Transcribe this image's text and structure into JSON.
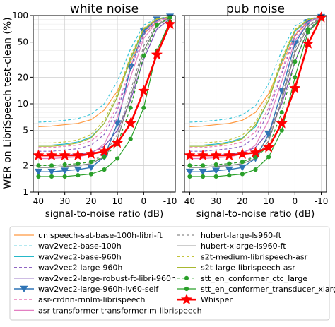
{
  "chart_data": {
    "type": "line",
    "ylabel": "WER on LibriSpeech test-clean (%)",
    "y_scale": "log",
    "ylim": [
      1,
      100
    ],
    "y_ticks": [
      1,
      2,
      5,
      10,
      20,
      50,
      100
    ],
    "y_tick_labels": [
      "1",
      "2",
      "5",
      "10",
      "20",
      "50",
      "100"
    ],
    "xlim": [
      42,
      -12
    ],
    "x_ticks": [
      40,
      30,
      20,
      10,
      0,
      -10
    ],
    "x_tick_labels": [
      "40",
      "30",
      "20",
      "10",
      "0",
      "-10"
    ],
    "grid": true,
    "legend_position": "bottom",
    "x": [
      40,
      35,
      30,
      25,
      20,
      15,
      10,
      5,
      0,
      -5,
      -10
    ],
    "series_styles": [
      {
        "name": "unispeech-sat-base-100h-libri-ft",
        "color": "#ff9940",
        "dash": "",
        "marker": "",
        "width": 1.2
      },
      {
        "name": "wav2vec2-base-100h",
        "color": "#37c5d9",
        "dash": "4,3",
        "marker": "",
        "width": 1.2
      },
      {
        "name": "wav2vec2-base-960h",
        "color": "#25b8c9",
        "dash": "",
        "marker": "",
        "width": 1.2
      },
      {
        "name": "wav2vec2-large-960h",
        "color": "#8f64c3",
        "dash": "4,3",
        "marker": "",
        "width": 1.2
      },
      {
        "name": "wav2vec2-large-robust-ft-libri-960h",
        "color": "#7b4fb6",
        "dash": "",
        "marker": "",
        "width": 1.2
      },
      {
        "name": "wav2vec2-large-960h-lv60-self",
        "color": "#2f74b5",
        "dash": "",
        "marker": "tri",
        "width": 1.4
      },
      {
        "name": "asr-crdnn-rnnlm-librispeech",
        "color": "#e87ab8",
        "dash": "4,3",
        "marker": "",
        "width": 1.2
      },
      {
        "name": "asr-transformer-transformerlm-librispeech",
        "color": "#e37fc2",
        "dash": "",
        "marker": "",
        "width": 1.2
      },
      {
        "name": "hubert-large-ls960-ft",
        "color": "#8a8a8a",
        "dash": "4,3",
        "marker": "",
        "width": 1.2
      },
      {
        "name": "hubert-xlarge-ls960-ft",
        "color": "#7a7a7a",
        "dash": "",
        "marker": "",
        "width": 1.2
      },
      {
        "name": "s2t-medium-librispeech-asr",
        "color": "#c4c43a",
        "dash": "4,3",
        "marker": "",
        "width": 1.2
      },
      {
        "name": "s2t-large-librispeech-asr",
        "color": "#a9b830",
        "dash": "",
        "marker": "",
        "width": 1.2
      },
      {
        "name": "stt_en_conformer_ctc_large",
        "color": "#2aa02a",
        "dash": "4,3",
        "marker": "dot",
        "width": 1.2
      },
      {
        "name": "stt_en_conformer_transducer_xlarge",
        "color": "#2aa02a",
        "dash": "",
        "marker": "dot",
        "width": 1.2
      },
      {
        "name": "Whisper",
        "color": "#ff0000",
        "dash": "",
        "marker": "star",
        "width": 2.6
      }
    ],
    "panels": [
      {
        "title": "white noise",
        "xlabel": "signal-to-noise ratio (dB)",
        "series": [
          {
            "name": "unispeech-sat-base-100h-libri-ft",
            "values": [
              5.5,
              5.6,
              5.8,
              6.0,
              6.6,
              8.5,
              14,
              30,
              62,
              85,
              95
            ]
          },
          {
            "name": "wav2vec2-base-100h",
            "values": [
              6.2,
              6.3,
              6.5,
              6.8,
              7.6,
              10,
              18,
              42,
              78,
              93,
              97
            ]
          },
          {
            "name": "wav2vec2-base-960h",
            "values": [
              3.4,
              3.4,
              3.5,
              3.7,
              4.2,
              6,
              12,
              32,
              68,
              90,
              97
            ]
          },
          {
            "name": "wav2vec2-large-960h",
            "values": [
              2.9,
              2.9,
              3.0,
              3.1,
              3.4,
              4.5,
              8.5,
              24,
              60,
              88,
              96
            ]
          },
          {
            "name": "wav2vec2-large-robust-ft-libri-960h",
            "values": [
              2.6,
              2.6,
              2.6,
              2.7,
              2.8,
              3.3,
              5,
              11,
              32,
              70,
              92
            ]
          },
          {
            "name": "wav2vec2-large-960h-lv60-self",
            "values": [
              1.7,
              1.7,
              1.75,
              1.8,
              1.9,
              2.5,
              6,
              26,
              66,
              90,
              97
            ]
          },
          {
            "name": "asr-crdnn-rnnlm-librispeech",
            "values": [
              3.2,
              3.2,
              3.3,
              3.4,
              3.8,
              5,
              9.5,
              26,
              64,
              90,
              97
            ]
          },
          {
            "name": "asr-transformer-transformerlm-librispeech",
            "values": [
              2.4,
              2.4,
              2.45,
              2.5,
              2.7,
              3.5,
              7,
              20,
              55,
              85,
              96
            ]
          },
          {
            "name": "hubert-large-ls960-ft",
            "values": [
              2.0,
              2.0,
              2.05,
              2.1,
              2.2,
              2.7,
              4.5,
              14,
              45,
              80,
              95
            ]
          },
          {
            "name": "hubert-xlarge-ls960-ft",
            "values": [
              1.9,
              1.9,
              1.95,
              2.0,
              2.1,
              2.5,
              4,
              12,
              40,
              77,
              94
            ]
          },
          {
            "name": "s2t-medium-librispeech-asr",
            "values": [
              3.6,
              3.6,
              3.7,
              3.9,
              4.5,
              6.5,
              13,
              35,
              72,
              92,
              97
            ]
          },
          {
            "name": "s2t-large-librispeech-asr",
            "values": [
              3.3,
              3.3,
              3.4,
              3.6,
              4.1,
              6,
              12,
              33,
              70,
              91,
              97
            ]
          },
          {
            "name": "stt_en_conformer_ctc_large",
            "values": [
              2.0,
              2.0,
              2.05,
              2.1,
              2.2,
              2.5,
              3.5,
              9,
              35,
              78,
              95
            ]
          },
          {
            "name": "stt_en_conformer_transducer_xlarge",
            "values": [
              1.5,
              1.5,
              1.5,
              1.55,
              1.6,
              1.8,
              2.4,
              4,
              9,
              40,
              85
            ]
          },
          {
            "name": "Whisper",
            "values": [
              2.6,
              2.6,
              2.6,
              2.6,
              2.7,
              2.9,
              3.6,
              6,
              14,
              36,
              80
            ]
          }
        ]
      },
      {
        "title": "pub noise",
        "xlabel": "signal-to-noise ratio (dB)",
        "series": [
          {
            "name": "unispeech-sat-base-100h-libri-ft",
            "values": [
              5.5,
              5.6,
              5.8,
              6.0,
              6.5,
              8,
              13,
              28,
              60,
              85,
              95
            ]
          },
          {
            "name": "wav2vec2-base-100h",
            "values": [
              6.2,
              6.3,
              6.5,
              6.8,
              7.5,
              9.5,
              17,
              40,
              76,
              92,
              97
            ]
          },
          {
            "name": "wav2vec2-base-960h",
            "values": [
              3.4,
              3.4,
              3.5,
              3.7,
              4.1,
              5.5,
              11,
              30,
              66,
              89,
              96
            ]
          },
          {
            "name": "wav2vec2-large-960h",
            "values": [
              2.9,
              2.9,
              3.0,
              3.1,
              3.3,
              4.2,
              8,
              22,
              58,
              87,
              96
            ]
          },
          {
            "name": "wav2vec2-large-robust-ft-libri-960h",
            "values": [
              2.6,
              2.6,
              2.6,
              2.7,
              2.8,
              3.2,
              4.8,
              10,
              30,
              68,
              92
            ]
          },
          {
            "name": "wav2vec2-large-960h-lv60-self",
            "values": [
              1.7,
              1.7,
              1.75,
              1.8,
              1.9,
              2.4,
              4.5,
              14,
              48,
              84,
              96
            ]
          },
          {
            "name": "asr-crdnn-rnnlm-librispeech",
            "values": [
              3.2,
              3.2,
              3.3,
              3.4,
              3.7,
              4.8,
              9,
              24,
              62,
              89,
              97
            ]
          },
          {
            "name": "asr-transformer-transformerlm-librispeech",
            "values": [
              2.4,
              2.4,
              2.45,
              2.5,
              2.7,
              3.4,
              6.5,
              18,
              52,
              84,
              96
            ]
          },
          {
            "name": "hubert-large-ls960-ft",
            "values": [
              2.0,
              2.0,
              2.05,
              2.1,
              2.2,
              2.6,
              4.2,
              12,
              42,
              78,
              95
            ]
          },
          {
            "name": "hubert-xlarge-ls960-ft",
            "values": [
              1.9,
              1.9,
              1.95,
              2.0,
              2.1,
              2.4,
              3.8,
              11,
              38,
              75,
              94
            ]
          },
          {
            "name": "s2t-medium-librispeech-asr",
            "values": [
              3.6,
              3.6,
              3.7,
              3.9,
              4.4,
              6.2,
              12,
              33,
              70,
              91,
              97
            ]
          },
          {
            "name": "s2t-large-librispeech-asr",
            "values": [
              3.3,
              3.3,
              3.4,
              3.6,
              4.0,
              5.8,
              11,
              31,
              68,
              90,
              97
            ]
          },
          {
            "name": "stt_en_conformer_ctc_large",
            "values": [
              2.0,
              2.0,
              2.05,
              2.1,
              2.2,
              2.5,
              3.3,
              8,
              30,
              70,
              93
            ]
          },
          {
            "name": "stt_en_conformer_transducer_xlarge",
            "values": [
              1.5,
              1.5,
              1.5,
              1.55,
              1.6,
              1.8,
              2.5,
              5,
              20,
              65,
              92
            ]
          },
          {
            "name": "Whisper",
            "values": [
              2.6,
              2.6,
              2.6,
              2.6,
              2.7,
              2.8,
              3.2,
              6,
              15,
              48,
              95
            ]
          }
        ]
      }
    ]
  }
}
